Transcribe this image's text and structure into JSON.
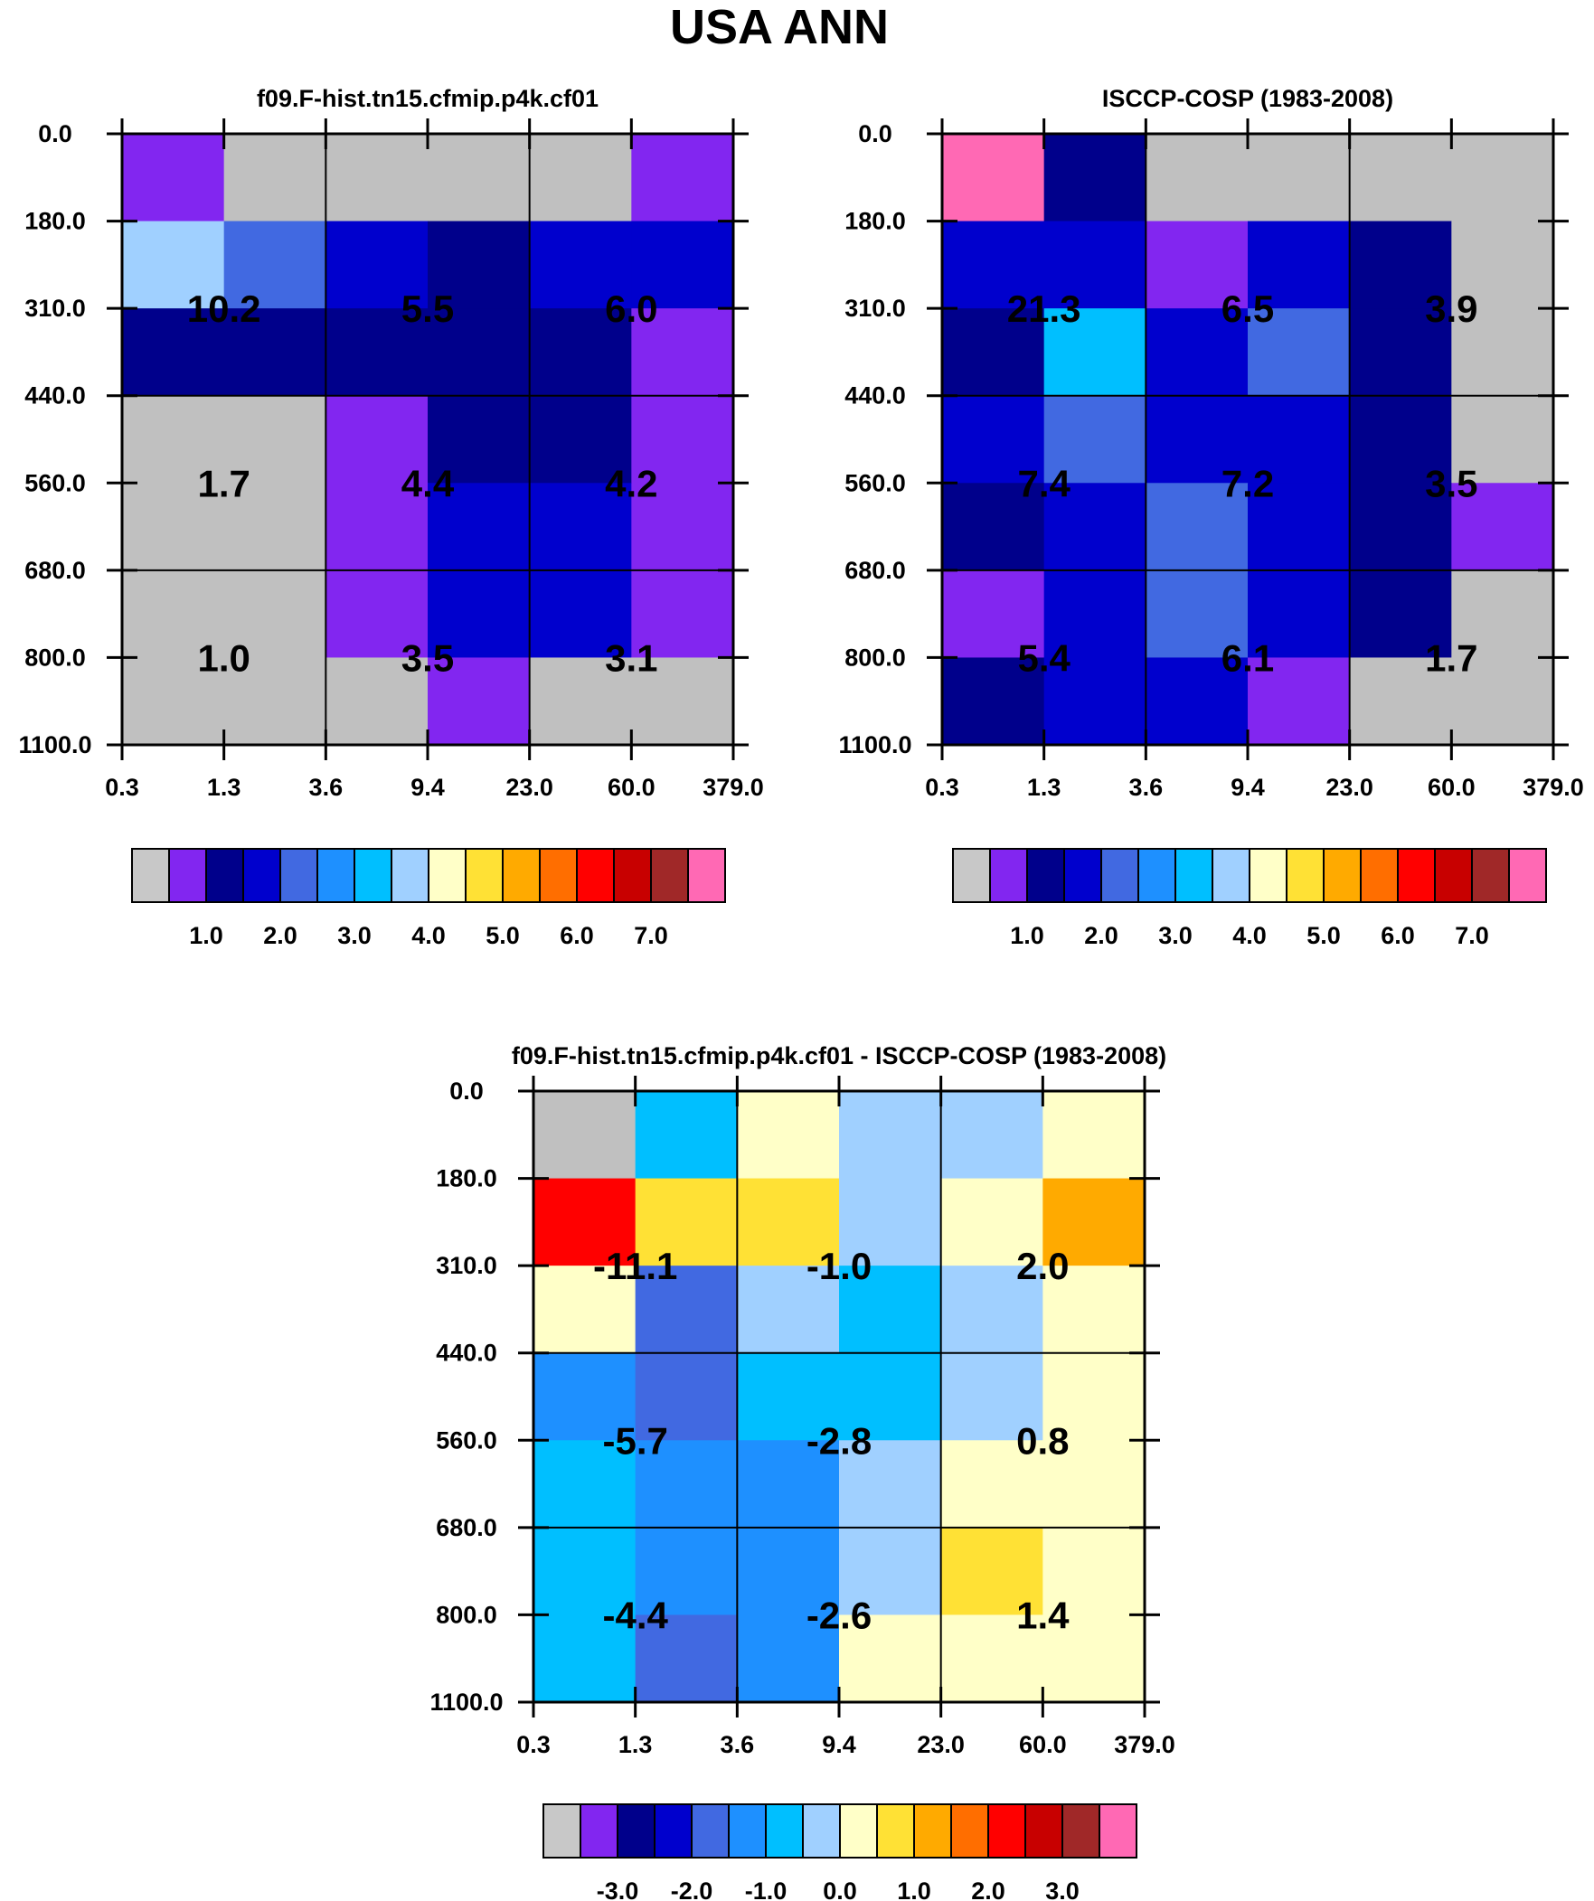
{
  "figure_title": "USA ANN",
  "chart_data": [
    {
      "type": "heatmap",
      "panel": "model",
      "title": "f09.F-hist.tn15.cfmip.p4k.cf01",
      "x_tick_labels": [
        "0.3",
        "1.3",
        "3.6",
        "9.4",
        "23.0",
        "60.0",
        "379.0"
      ],
      "y_tick_labels": [
        "0.0",
        "180.0",
        "310.0",
        "440.0",
        "560.0",
        "680.0",
        "800.0",
        "1100.0"
      ],
      "cell_colors": [
        [
          "#8226F0",
          "#C0C0C0",
          "#C0C0C0",
          "#C0C0C0",
          "#C0C0C0",
          "#8226F0"
        ],
        [
          "#A0D0FF",
          "#4169E1",
          "#0000CD",
          "#00008B",
          "#0000CD",
          "#0000CD"
        ],
        [
          "#00008B",
          "#00008B",
          "#00008B",
          "#00008B",
          "#00008B",
          "#8226F0"
        ],
        [
          "#C0C0C0",
          "#C0C0C0",
          "#8226F0",
          "#00008B",
          "#00008B",
          "#8226F0"
        ],
        [
          "#C0C0C0",
          "#C0C0C0",
          "#8226F0",
          "#0000CD",
          "#0000CD",
          "#8226F0"
        ],
        [
          "#C0C0C0",
          "#C0C0C0",
          "#8226F0",
          "#0000CD",
          "#0000CD",
          "#8226F0"
        ],
        [
          "#C0C0C0",
          "#C0C0C0",
          "#C0C0C0",
          "#8226F0",
          "#C0C0C0",
          "#C0C0C0"
        ]
      ],
      "box_values": [
        [
          "10.2",
          "5.5",
          "6.0"
        ],
        [
          "1.7",
          "4.4",
          "4.2"
        ],
        [
          "1.0",
          "3.5",
          "3.1"
        ]
      ],
      "colorbar": {
        "colors": [
          "#C8C8C8",
          "#8226F0",
          "#00008B",
          "#0000CD",
          "#4169E1",
          "#1E90FF",
          "#00BFFF",
          "#A0D0FF",
          "#FFFFC8",
          "#FFE135",
          "#FFAA00",
          "#FF6E00",
          "#FF0000",
          "#C80000",
          "#A02828",
          "#FF69B4"
        ],
        "labels": [
          "1.0",
          "2.0",
          "3.0",
          "4.0",
          "5.0",
          "6.0",
          "7.0"
        ]
      }
    },
    {
      "type": "heatmap",
      "panel": "observation",
      "title": "ISCCP-COSP (1983-2008)",
      "x_tick_labels": [
        "0.3",
        "1.3",
        "3.6",
        "9.4",
        "23.0",
        "60.0",
        "379.0"
      ],
      "y_tick_labels": [
        "0.0",
        "180.0",
        "310.0",
        "440.0",
        "560.0",
        "680.0",
        "800.0",
        "1100.0"
      ],
      "cell_colors": [
        [
          "#FF69B4",
          "#00008B",
          "#C0C0C0",
          "#C0C0C0",
          "#C0C0C0",
          "#C0C0C0"
        ],
        [
          "#0000CD",
          "#0000CD",
          "#8226F0",
          "#0000CD",
          "#00008B",
          "#C0C0C0"
        ],
        [
          "#00008B",
          "#00BFFF",
          "#0000CD",
          "#4169E1",
          "#00008B",
          "#C0C0C0"
        ],
        [
          "#0000CD",
          "#4169E1",
          "#0000CD",
          "#0000CD",
          "#00008B",
          "#C0C0C0"
        ],
        [
          "#00008B",
          "#0000CD",
          "#4169E1",
          "#0000CD",
          "#00008B",
          "#8226F0"
        ],
        [
          "#8226F0",
          "#0000CD",
          "#4169E1",
          "#0000CD",
          "#00008B",
          "#C0C0C0"
        ],
        [
          "#00008B",
          "#0000CD",
          "#0000CD",
          "#8226F0",
          "#C0C0C0",
          "#C0C0C0"
        ]
      ],
      "box_values": [
        [
          "21.3",
          "6.5",
          "3.9"
        ],
        [
          "7.4",
          "7.2",
          "3.5"
        ],
        [
          "5.4",
          "6.1",
          "1.7"
        ]
      ],
      "colorbar": {
        "colors": [
          "#C8C8C8",
          "#8226F0",
          "#00008B",
          "#0000CD",
          "#4169E1",
          "#1E90FF",
          "#00BFFF",
          "#A0D0FF",
          "#FFFFC8",
          "#FFE135",
          "#FFAA00",
          "#FF6E00",
          "#FF0000",
          "#C80000",
          "#A02828",
          "#FF69B4"
        ],
        "labels": [
          "1.0",
          "2.0",
          "3.0",
          "4.0",
          "5.0",
          "6.0",
          "7.0"
        ]
      }
    },
    {
      "type": "heatmap",
      "panel": "difference",
      "title": "f09.F-hist.tn15.cfmip.p4k.cf01 - ISCCP-COSP (1983-2008)",
      "x_tick_labels": [
        "0.3",
        "1.3",
        "3.6",
        "9.4",
        "23.0",
        "60.0",
        "379.0"
      ],
      "y_tick_labels": [
        "0.0",
        "180.0",
        "310.0",
        "440.0",
        "560.0",
        "680.0",
        "800.0",
        "1100.0"
      ],
      "cell_colors": [
        [
          "#C0C0C0",
          "#00BFFF",
          "#FFFFC8",
          "#A0D0FF",
          "#A0D0FF",
          "#FFFFC8"
        ],
        [
          "#FF0000",
          "#FFE135",
          "#FFE135",
          "#A0D0FF",
          "#FFFFC8",
          "#FFAA00"
        ],
        [
          "#FFFFC8",
          "#4169E1",
          "#A0D0FF",
          "#00BFFF",
          "#A0D0FF",
          "#FFFFC8"
        ],
        [
          "#1E90FF",
          "#4169E1",
          "#00BFFF",
          "#00BFFF",
          "#A0D0FF",
          "#FFFFC8"
        ],
        [
          "#00BFFF",
          "#1E90FF",
          "#1E90FF",
          "#A0D0FF",
          "#FFFFC8",
          "#FFFFC8"
        ],
        [
          "#00BFFF",
          "#1E90FF",
          "#1E90FF",
          "#A0D0FF",
          "#FFE135",
          "#FFFFC8"
        ],
        [
          "#00BFFF",
          "#4169E1",
          "#1E90FF",
          "#FFFFC8",
          "#FFFFC8",
          "#FFFFC8"
        ]
      ],
      "box_values": [
        [
          "-11.1",
          "-1.0",
          "2.0"
        ],
        [
          "-5.7",
          "-2.8",
          "0.8"
        ],
        [
          "-4.4",
          "-2.6",
          "1.4"
        ]
      ],
      "colorbar": {
        "colors": [
          "#C8C8C8",
          "#8226F0",
          "#00008B",
          "#0000CD",
          "#4169E1",
          "#1E90FF",
          "#00BFFF",
          "#A0D0FF",
          "#FFFFC8",
          "#FFE135",
          "#FFAA00",
          "#FF6E00",
          "#FF0000",
          "#C80000",
          "#A02828",
          "#FF69B4"
        ],
        "labels": [
          "-3.0",
          "-2.0",
          "-1.0",
          "0.0",
          "1.0",
          "2.0",
          "3.0"
        ]
      }
    }
  ]
}
